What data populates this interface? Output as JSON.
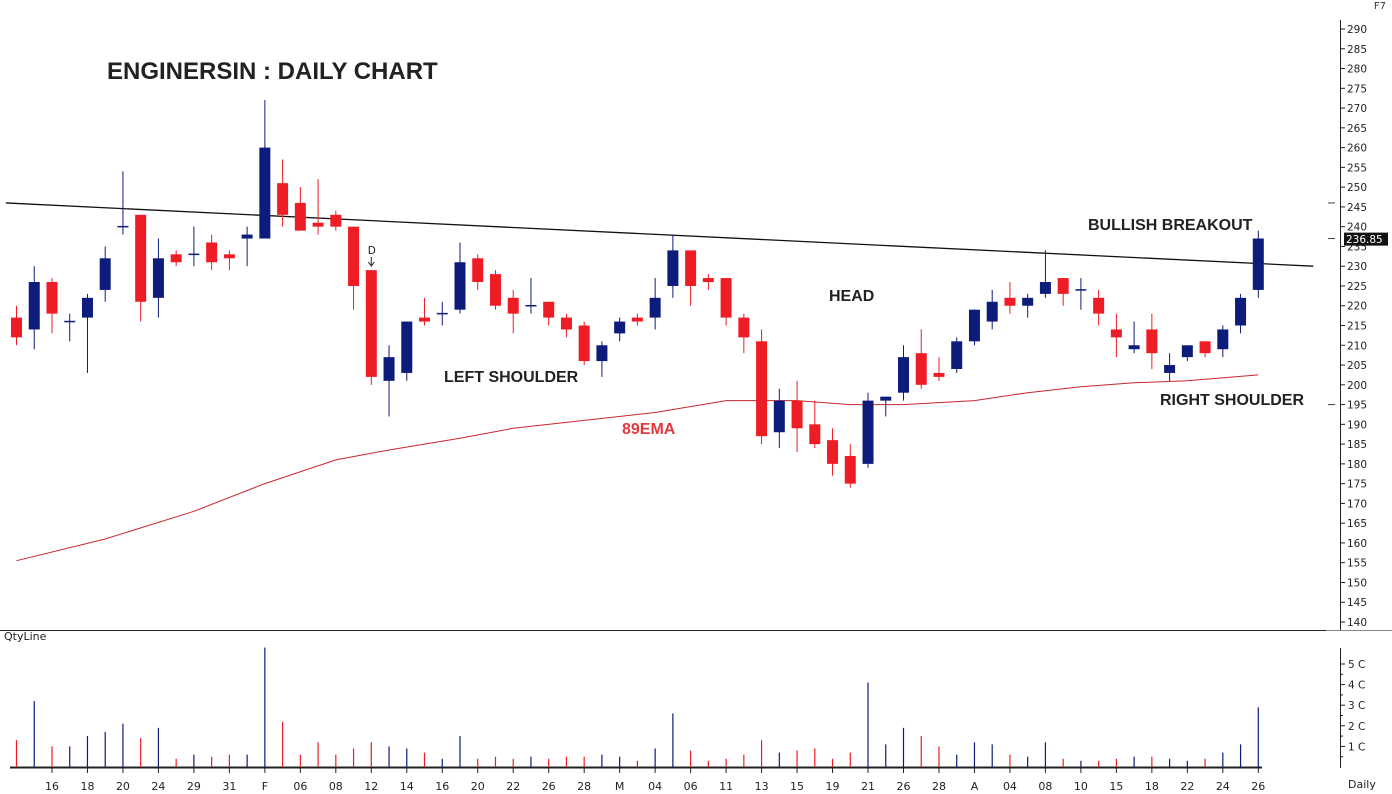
{
  "chart_title": "ENGINERSIN : DAILY CHART",
  "corner_label": "F7",
  "volume_panel_label": "QtyLine",
  "timeframe_label": "Daily",
  "annotations": {
    "bullish_breakout": "BULLISH BREAKOUT",
    "head": "HEAD",
    "left_shoulder": "LEFT SHOULDER",
    "right_shoulder": "RIGHT SHOULDER",
    "ema": "89EMA",
    "marker_d": "D"
  },
  "colors": {
    "up": "#0d1b7a",
    "down": "#ee1c24",
    "ema": "#c8272c",
    "trendline": "#111111",
    "axis": "#222222"
  },
  "chart_data": {
    "type": "candlestick",
    "price_axis": {
      "min": 140,
      "max": 290,
      "step": 5
    },
    "last_price": "236.85",
    "volume_axis": {
      "min": 0,
      "max": 5,
      "ticks": [
        "1 C",
        "2 C",
        "3 C",
        "4 C",
        "5 C"
      ]
    },
    "x_tick_labels": [
      {
        "i": 2,
        "label": "16"
      },
      {
        "i": 4,
        "label": "18"
      },
      {
        "i": 6,
        "label": "20"
      },
      {
        "i": 8,
        "label": "24"
      },
      {
        "i": 10,
        "label": "29"
      },
      {
        "i": 12,
        "label": "31"
      },
      {
        "i": 14,
        "label": "F"
      },
      {
        "i": 16,
        "label": "06"
      },
      {
        "i": 18,
        "label": "08"
      },
      {
        "i": 20,
        "label": "12"
      },
      {
        "i": 22,
        "label": "14"
      },
      {
        "i": 24,
        "label": "16"
      },
      {
        "i": 26,
        "label": "20"
      },
      {
        "i": 28,
        "label": "22"
      },
      {
        "i": 30,
        "label": "26"
      },
      {
        "i": 32,
        "label": "28"
      },
      {
        "i": 34,
        "label": "M"
      },
      {
        "i": 36,
        "label": "04"
      },
      {
        "i": 38,
        "label": "06"
      },
      {
        "i": 40,
        "label": "11"
      },
      {
        "i": 42,
        "label": "13"
      },
      {
        "i": 44,
        "label": "15"
      },
      {
        "i": 46,
        "label": "19"
      },
      {
        "i": 48,
        "label": "21"
      },
      {
        "i": 50,
        "label": "26"
      },
      {
        "i": 52,
        "label": "28"
      },
      {
        "i": 54,
        "label": "A"
      },
      {
        "i": 56,
        "label": "04"
      },
      {
        "i": 58,
        "label": "08"
      },
      {
        "i": 60,
        "label": "10"
      },
      {
        "i": 62,
        "label": "15"
      },
      {
        "i": 64,
        "label": "18"
      },
      {
        "i": 66,
        "label": "22"
      },
      {
        "i": 68,
        "label": "24"
      },
      {
        "i": 70,
        "label": "26"
      }
    ],
    "candles": [
      {
        "o": 217,
        "h": 220,
        "l": 210,
        "c": 212,
        "v": 1.3
      },
      {
        "o": 214,
        "h": 230,
        "l": 209,
        "c": 226,
        "v": 3.2
      },
      {
        "o": 226,
        "h": 227,
        "l": 213,
        "c": 218,
        "v": 1.0
      },
      {
        "o": 216,
        "h": 218,
        "l": 211,
        "c": 216,
        "v": 1.0
      },
      {
        "o": 217,
        "h": 223,
        "l": 203,
        "c": 222,
        "v": 1.5
      },
      {
        "o": 224,
        "h": 235,
        "l": 221,
        "c": 232,
        "v": 1.7
      },
      {
        "o": 240,
        "h": 254,
        "l": 238,
        "c": 240,
        "v": 2.1
      },
      {
        "o": 243,
        "h": 243,
        "l": 216,
        "c": 221,
        "v": 1.4
      },
      {
        "o": 222,
        "h": 237,
        "l": 217,
        "c": 232,
        "v": 1.9
      },
      {
        "o": 233,
        "h": 234,
        "l": 230,
        "c": 231,
        "v": 0.4
      },
      {
        "o": 233,
        "h": 240,
        "l": 230,
        "c": 233,
        "v": 0.6
      },
      {
        "o": 236,
        "h": 238,
        "l": 229,
        "c": 231,
        "v": 0.5
      },
      {
        "o": 233,
        "h": 234,
        "l": 229,
        "c": 232,
        "v": 0.6
      },
      {
        "o": 237,
        "h": 240,
        "l": 230,
        "c": 238,
        "v": 0.6
      },
      {
        "o": 237,
        "h": 272,
        "l": 237,
        "c": 260,
        "v": 5.8
      },
      {
        "o": 251,
        "h": 257,
        "l": 240,
        "c": 243,
        "v": 2.2
      },
      {
        "o": 246,
        "h": 250,
        "l": 239,
        "c": 239,
        "v": 0.6
      },
      {
        "o": 241,
        "h": 252,
        "l": 238,
        "c": 240,
        "v": 1.2
      },
      {
        "o": 243,
        "h": 244,
        "l": 239,
        "c": 240,
        "v": 0.6
      },
      {
        "o": 240,
        "h": 240,
        "l": 219,
        "c": 225,
        "v": 0.9
      },
      {
        "o": 229,
        "h": 229,
        "l": 200,
        "c": 202,
        "v": 1.2
      },
      {
        "o": 201,
        "h": 210,
        "l": 192,
        "c": 207,
        "v": 1.0
      },
      {
        "o": 203,
        "h": 216,
        "l": 201,
        "c": 216,
        "v": 0.9
      },
      {
        "o": 217,
        "h": 222,
        "l": 215,
        "c": 216,
        "v": 0.7
      },
      {
        "o": 218,
        "h": 221,
        "l": 215,
        "c": 218,
        "v": 0.4
      },
      {
        "o": 219,
        "h": 236,
        "l": 218,
        "c": 231,
        "v": 1.5
      },
      {
        "o": 232,
        "h": 233,
        "l": 224,
        "c": 226,
        "v": 0.4
      },
      {
        "o": 228,
        "h": 229,
        "l": 219,
        "c": 220,
        "v": 0.5
      },
      {
        "o": 222,
        "h": 224,
        "l": 213,
        "c": 218,
        "v": 0.4
      },
      {
        "o": 220,
        "h": 227,
        "l": 218,
        "c": 220,
        "v": 0.5
      },
      {
        "o": 221,
        "h": 221,
        "l": 215,
        "c": 217,
        "v": 0.4
      },
      {
        "o": 217,
        "h": 218,
        "l": 212,
        "c": 214,
        "v": 0.5
      },
      {
        "o": 215,
        "h": 216,
        "l": 205,
        "c": 206,
        "v": 0.5
      },
      {
        "o": 206,
        "h": 211,
        "l": 202,
        "c": 210,
        "v": 0.6
      },
      {
        "o": 213,
        "h": 217,
        "l": 211,
        "c": 216,
        "v": 0.5
      },
      {
        "o": 217,
        "h": 218,
        "l": 215,
        "c": 216,
        "v": 0.3
      },
      {
        "o": 217,
        "h": 227,
        "l": 214,
        "c": 222,
        "v": 0.9
      },
      {
        "o": 225,
        "h": 238,
        "l": 222,
        "c": 234,
        "v": 2.6
      },
      {
        "o": 234,
        "h": 234,
        "l": 220,
        "c": 225,
        "v": 0.8
      },
      {
        "o": 227,
        "h": 228,
        "l": 224,
        "c": 226,
        "v": 0.3
      },
      {
        "o": 227,
        "h": 227,
        "l": 215,
        "c": 217,
        "v": 0.4
      },
      {
        "o": 217,
        "h": 218,
        "l": 208,
        "c": 212,
        "v": 0.6
      },
      {
        "o": 211,
        "h": 214,
        "l": 185,
        "c": 187,
        "v": 1.3
      },
      {
        "o": 188,
        "h": 199,
        "l": 184,
        "c": 196,
        "v": 0.7
      },
      {
        "o": 196,
        "h": 201,
        "l": 183,
        "c": 189,
        "v": 0.8
      },
      {
        "o": 190,
        "h": 196,
        "l": 184,
        "c": 185,
        "v": 0.9
      },
      {
        "o": 186,
        "h": 189,
        "l": 177,
        "c": 180,
        "v": 0.4
      },
      {
        "o": 182,
        "h": 185,
        "l": 174,
        "c": 175,
        "v": 0.7
      },
      {
        "o": 180,
        "h": 198,
        "l": 179,
        "c": 196,
        "v": 4.1
      },
      {
        "o": 196,
        "h": 197,
        "l": 192,
        "c": 197,
        "v": 1.1
      },
      {
        "o": 198,
        "h": 210,
        "l": 196,
        "c": 207,
        "v": 1.9
      },
      {
        "o": 208,
        "h": 214,
        "l": 199,
        "c": 200,
        "v": 1.5
      },
      {
        "o": 203,
        "h": 207,
        "l": 201,
        "c": 202,
        "v": 1.0
      },
      {
        "o": 204,
        "h": 212,
        "l": 203,
        "c": 211,
        "v": 0.6
      },
      {
        "o": 211,
        "h": 219,
        "l": 210,
        "c": 219,
        "v": 1.2
      },
      {
        "o": 216,
        "h": 224,
        "l": 214,
        "c": 221,
        "v": 1.1
      },
      {
        "o": 222,
        "h": 226,
        "l": 218,
        "c": 220,
        "v": 0.6
      },
      {
        "o": 220,
        "h": 223,
        "l": 217,
        "c": 222,
        "v": 0.5
      },
      {
        "o": 223,
        "h": 234,
        "l": 222,
        "c": 226,
        "v": 1.2
      },
      {
        "o": 227,
        "h": 227,
        "l": 220,
        "c": 223,
        "v": 0.4
      },
      {
        "o": 224,
        "h": 227,
        "l": 219,
        "c": 224,
        "v": 0.3
      },
      {
        "o": 222,
        "h": 224,
        "l": 215,
        "c": 218,
        "v": 0.3
      },
      {
        "o": 214,
        "h": 218,
        "l": 207,
        "c": 212,
        "v": 0.4
      },
      {
        "o": 209,
        "h": 216,
        "l": 208,
        "c": 210,
        "v": 0.5
      },
      {
        "o": 214,
        "h": 218,
        "l": 204,
        "c": 208,
        "v": 0.5
      },
      {
        "o": 203,
        "h": 208,
        "l": 201,
        "c": 205,
        "v": 0.4
      },
      {
        "o": 207,
        "h": 210,
        "l": 206,
        "c": 210,
        "v": 0.3
      },
      {
        "o": 211,
        "h": 211,
        "l": 207,
        "c": 208,
        "v": 0.4
      },
      {
        "o": 209,
        "h": 215,
        "l": 207,
        "c": 214,
        "v": 0.7
      },
      {
        "o": 215,
        "h": 223,
        "l": 213,
        "c": 222,
        "v": 1.1
      },
      {
        "o": 224,
        "h": 239,
        "l": 222,
        "c": 237,
        "v": 2.9
      }
    ],
    "ema89": [
      {
        "i": 0,
        "v": 155.5
      },
      {
        "i": 5,
        "v": 161
      },
      {
        "i": 10,
        "v": 168
      },
      {
        "i": 14,
        "v": 175
      },
      {
        "i": 18,
        "v": 181
      },
      {
        "i": 21,
        "v": 183.5
      },
      {
        "i": 25,
        "v": 186.5
      },
      {
        "i": 28,
        "v": 189
      },
      {
        "i": 32,
        "v": 191
      },
      {
        "i": 36,
        "v": 193
      },
      {
        "i": 40,
        "v": 196
      },
      {
        "i": 44,
        "v": 196
      },
      {
        "i": 47,
        "v": 195
      },
      {
        "i": 50,
        "v": 195
      },
      {
        "i": 54,
        "v": 196
      },
      {
        "i": 57,
        "v": 198
      },
      {
        "i": 60,
        "v": 199.5
      },
      {
        "i": 63,
        "v": 200.5
      },
      {
        "i": 66,
        "v": 201
      },
      {
        "i": 70,
        "v": 202.5
      }
    ],
    "neckline": {
      "start": {
        "i": -0.6,
        "v": 246
      },
      "end": {
        "i": 73.1,
        "v": 230
      }
    }
  }
}
